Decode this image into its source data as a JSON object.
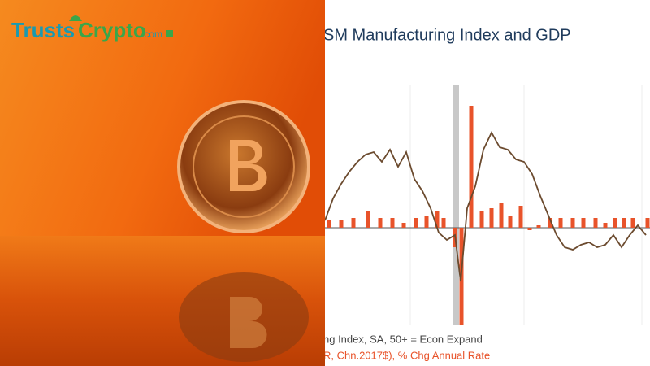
{
  "logo": {
    "part1": "Trusts",
    "part2": "Crypto",
    "suffix": ".com"
  },
  "chart_data": {
    "type": "bar-line",
    "title": "SM Manufacturing Index and GDP",
    "xlim": [
      0,
      100
    ],
    "ylim": [
      -40,
      58
    ],
    "series": [
      {
        "name": "R, Chn.2017$), % Chg Annual Rate",
        "kind": "bar",
        "color": "#e8532a",
        "x": [
          1.25,
          5,
          8.75,
          13.25,
          17,
          20.75,
          24.25,
          28,
          31.25,
          34.5,
          36.5,
          40,
          42,
          45,
          48.25,
          51.25,
          54.25,
          57,
          60.25,
          63,
          65.75,
          69.25,
          72.5,
          76.25,
          79.5,
          83.25,
          86.25,
          89.25,
          92,
          94.75,
          99.25
        ],
        "values": [
          3,
          3,
          4,
          7,
          4,
          4,
          2,
          4,
          5,
          7,
          4,
          -8,
          -40,
          50,
          7,
          8,
          10,
          5,
          9,
          -1,
          1,
          4,
          4,
          4,
          4,
          4,
          2,
          4,
          4,
          4,
          4
        ]
      },
      {
        "name": "ng Index, SA, 50+ = Econ Expand",
        "kind": "line",
        "color": "#6b4a2e",
        "x": [
          0,
          2.5,
          5,
          7.5,
          10,
          12.5,
          15,
          17.5,
          20,
          22.5,
          25,
          27.5,
          30,
          32.5,
          35,
          37.5,
          40,
          41.75,
          43.75,
          46.25,
          48.75,
          51.25,
          53.75,
          56.25,
          58.75,
          61.25,
          63.75,
          66.25,
          68.75,
          71.25,
          73.75,
          76.25,
          78.75,
          81.25,
          83.75,
          86.25,
          88.75,
          91.25,
          93.75,
          96.25,
          98.75
        ],
        "values": [
          3,
          12,
          18,
          23,
          27,
          30,
          31,
          27,
          32,
          25,
          31,
          20,
          15,
          8,
          -2,
          -5,
          -3,
          -22,
          8,
          17,
          32,
          39,
          33,
          32,
          28,
          27,
          22,
          13,
          5,
          -3,
          -8,
          -9,
          -7,
          -6,
          -8,
          -7,
          -3,
          -8,
          -3,
          1,
          -3
        ]
      }
    ]
  }
}
